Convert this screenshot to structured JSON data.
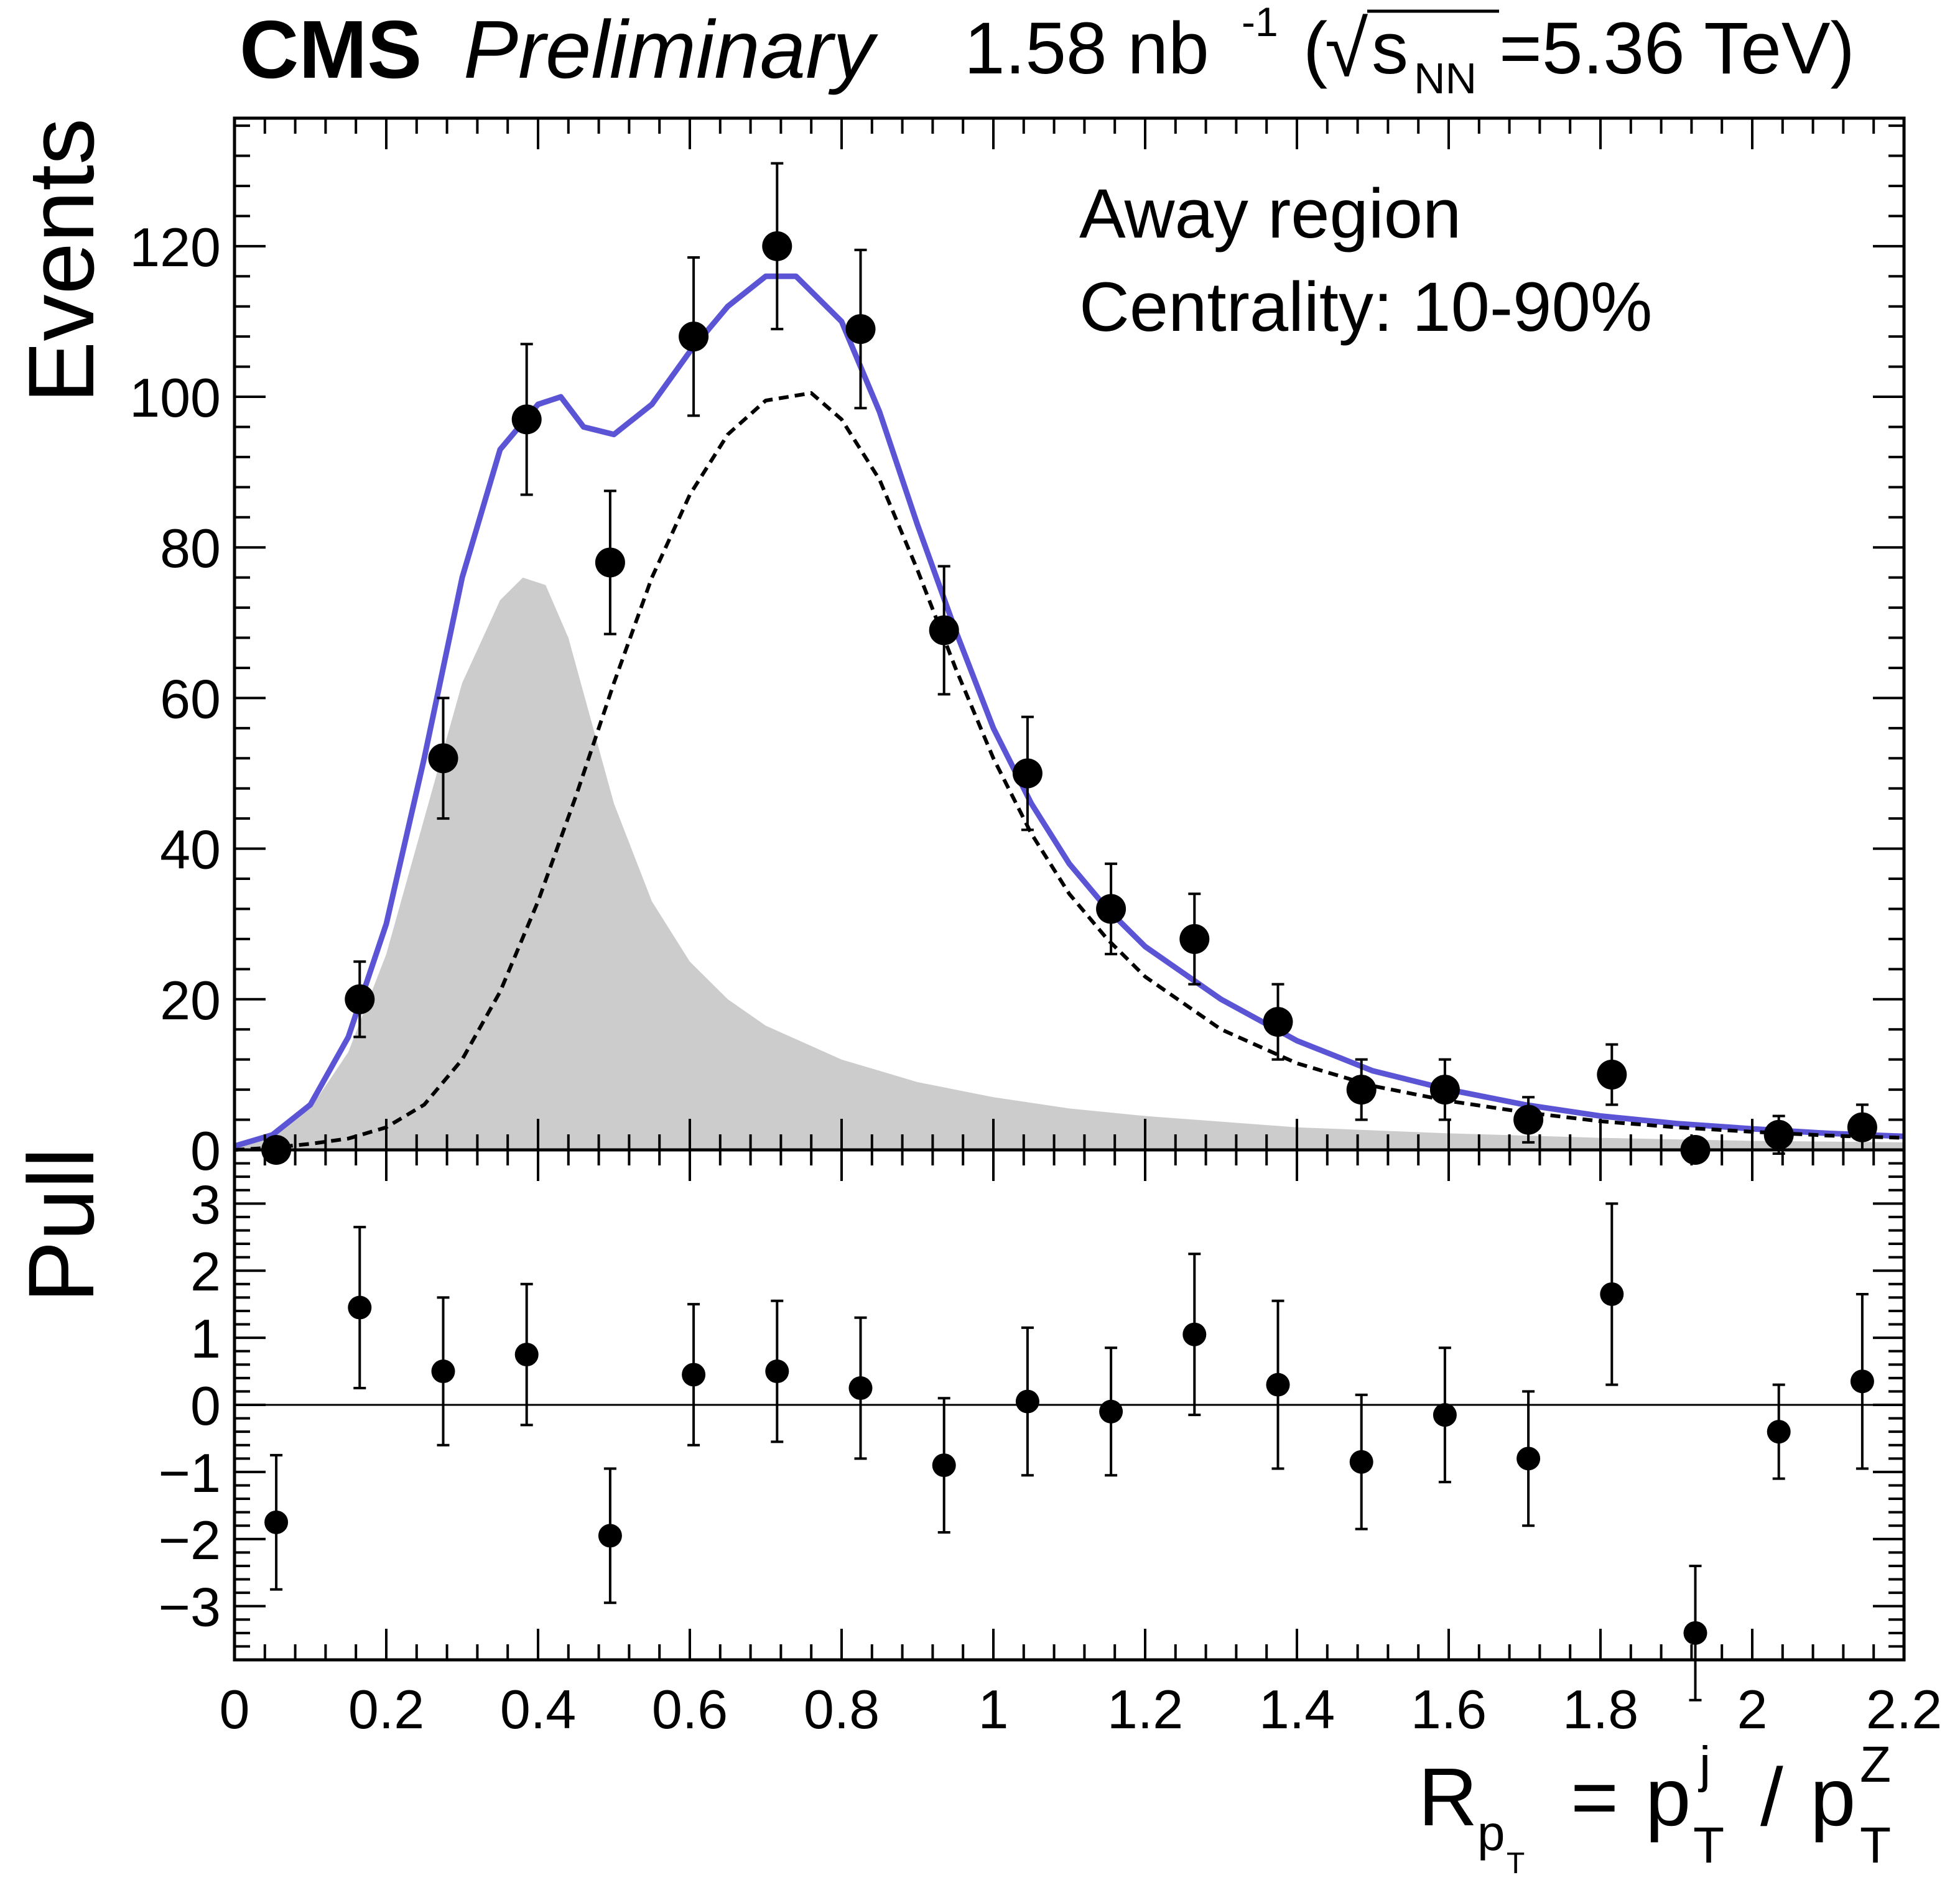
{
  "chart_data": {
    "type": "scatter",
    "header": {
      "experiment": "CMS",
      "status": "Preliminary",
      "lumi": "1.58 nb",
      "lumi_exp": "-1",
      "energy_open": "(",
      "sqrt_symbol": "√",
      "energy_s": "s",
      "energy_sub": "NN",
      "energy_rest": "=5.36 TeV)"
    },
    "annotations": [
      "Away region",
      "Centrality: 10-90%"
    ],
    "xlabel": {
      "R": "R",
      "p_sub": "p",
      "T_subsub": "T",
      "equals": "=",
      "p1": "p",
      "sup1": "j",
      "sub1": "T",
      "slash": "/",
      "p2": "p",
      "sup2": "Z",
      "sub2": "T"
    },
    "xlim": [
      0,
      2.2
    ],
    "x_ticks": [
      0,
      0.2,
      0.4,
      0.6,
      0.8,
      1,
      1.2,
      1.4,
      1.6,
      1.8,
      2,
      2.2
    ],
    "x_tick_labels": [
      "0",
      "0.2",
      "0.4",
      "0.6",
      "0.8",
      "1",
      "1.2",
      "1.4",
      "1.6",
      "1.8",
      "2",
      "2.2"
    ],
    "top_panel": {
      "ylabel": "Events",
      "ylim": [
        0,
        137
      ],
      "y_ticks": [
        0,
        20,
        40,
        60,
        80,
        100,
        120
      ],
      "y_tick_labels": [
        "0",
        "20",
        "40",
        "60",
        "80",
        "100",
        "120"
      ],
      "series": [
        {
          "name": "Data",
          "style": "points",
          "x": [
            0.055,
            0.165,
            0.275,
            0.385,
            0.495,
            0.605,
            0.715,
            0.825,
            0.935,
            1.045,
            1.155,
            1.265,
            1.375,
            1.485,
            1.595,
            1.705,
            1.815,
            1.925,
            2.035,
            2.145
          ],
          "y": [
            0,
            20,
            52,
            97,
            78,
            108,
            120,
            109,
            69,
            50,
            32,
            28,
            17,
            8,
            8,
            4,
            10,
            0,
            2,
            3
          ],
          "err": [
            0,
            5,
            8,
            10,
            9.5,
            10.5,
            11,
            10.5,
            8.5,
            7.5,
            6,
            6,
            5,
            4,
            4,
            3,
            4,
            0,
            2.5,
            3
          ]
        },
        {
          "name": "Total fit",
          "style": "line",
          "color": "#5b55d6",
          "x": [
            0,
            0.05,
            0.1,
            0.15,
            0.2,
            0.25,
            0.3,
            0.35,
            0.4,
            0.43,
            0.46,
            0.5,
            0.55,
            0.6,
            0.65,
            0.7,
            0.74,
            0.8,
            0.85,
            0.9,
            0.95,
            1,
            1.05,
            1.1,
            1.15,
            1.2,
            1.3,
            1.4,
            1.5,
            1.6,
            1.7,
            1.8,
            1.9,
            2,
            2.1,
            2.2
          ],
          "y": [
            0.5,
            2,
            6,
            15,
            30,
            52,
            76,
            93,
            99,
            100,
            96,
            95,
            99,
            106,
            112,
            116,
            116,
            110,
            98,
            83,
            69,
            56,
            46,
            38,
            32,
            27,
            20,
            14.5,
            10.5,
            8,
            6,
            4.5,
            3.5,
            2.8,
            2.2,
            1.8
          ]
        },
        {
          "name": "Signal component",
          "style": "dashed",
          "color": "#000000",
          "x": [
            0,
            0.05,
            0.1,
            0.15,
            0.2,
            0.25,
            0.3,
            0.35,
            0.4,
            0.45,
            0.5,
            0.55,
            0.6,
            0.65,
            0.7,
            0.76,
            0.8,
            0.85,
            0.9,
            0.95,
            1,
            1.05,
            1.1,
            1.15,
            1.2,
            1.3,
            1.4,
            1.5,
            1.6,
            1.7,
            1.8,
            1.9,
            2,
            2.1,
            2.2
          ],
          "y": [
            0,
            0.3,
            0.8,
            1.5,
            3,
            6,
            12,
            21,
            33,
            47,
            62,
            76,
            87,
            95,
            99.5,
            100.5,
            97,
            89,
            77,
            64,
            52,
            42,
            34,
            28,
            23,
            16,
            11.5,
            8.5,
            6.5,
            5,
            3.8,
            3,
            2.4,
            1.9,
            1.6
          ]
        },
        {
          "name": "Background component",
          "style": "filled",
          "color": "#cccccc",
          "x": [
            0,
            0.05,
            0.1,
            0.15,
            0.2,
            0.25,
            0.3,
            0.35,
            0.38,
            0.41,
            0.44,
            0.47,
            0.5,
            0.55,
            0.6,
            0.65,
            0.7,
            0.8,
            0.9,
            1,
            1.1,
            1.2,
            1.4,
            1.6,
            1.8,
            2,
            2.2
          ],
          "y": [
            0.5,
            2,
            5.5,
            13,
            26,
            44,
            62,
            73,
            76,
            75,
            68,
            57,
            46,
            33,
            25,
            20,
            16.5,
            12,
            9,
            7,
            5.5,
            4.5,
            3,
            2.2,
            1.6,
            1.2,
            1
          ]
        }
      ]
    },
    "bottom_panel": {
      "ylabel": "Pull",
      "ylim": [
        -3.8,
        3.8
      ],
      "y_ticks": [
        -3,
        -2,
        -1,
        0,
        1,
        2,
        3
      ],
      "y_tick_labels": [
        "−3",
        "−2",
        "−1",
        "0",
        "1",
        "2",
        "3"
      ],
      "reference_line": 0,
      "series": [
        {
          "name": "Pull",
          "style": "points",
          "x": [
            0.055,
            0.165,
            0.275,
            0.385,
            0.495,
            0.605,
            0.715,
            0.825,
            0.935,
            1.045,
            1.155,
            1.265,
            1.375,
            1.485,
            1.595,
            1.705,
            1.815,
            1.925,
            2.035,
            2.145
          ],
          "y": [
            -1.75,
            1.45,
            0.5,
            0.75,
            -1.95,
            0.45,
            0.5,
            0.25,
            -0.9,
            0.05,
            -0.1,
            1.05,
            0.3,
            -0.85,
            -0.15,
            -0.8,
            1.65,
            -3.4,
            -0.4,
            0.35
          ],
          "err": [
            1,
            1.2,
            1.1,
            1.05,
            1,
            1.05,
            1.05,
            1.05,
            1,
            1.1,
            0.95,
            1.2,
            1.25,
            1,
            1,
            1,
            1.35,
            1,
            0.7,
            1.3
          ]
        }
      ]
    }
  }
}
